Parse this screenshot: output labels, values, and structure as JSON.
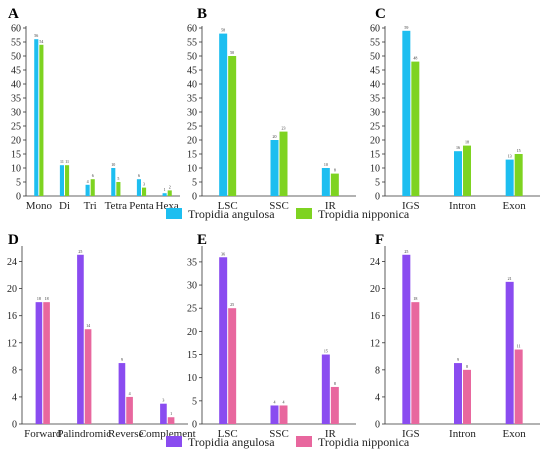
{
  "legends": [
    {
      "items": [
        {
          "label": "Tropidia angulosa",
          "color": "#1DBEF0"
        },
        {
          "label": "Tropidia nipponica",
          "color": "#7ED321"
        }
      ]
    },
    {
      "items": [
        {
          "label": "Tropidia angulosa",
          "color": "#8A4CF0"
        },
        {
          "label": "Tropidia nipponica",
          "color": "#E8679E"
        }
      ]
    }
  ],
  "chart_data": [
    {
      "panel": "A",
      "type": "bar",
      "categories": [
        "Mono",
        "Di",
        "Tri",
        "Tetra",
        "Penta",
        "Hexa"
      ],
      "series": [
        {
          "name": "Tropidia angulosa",
          "color": "#1DBEF0",
          "values": [
            56,
            11,
            4,
            10,
            6,
            1
          ]
        },
        {
          "name": "Tropidia nipponica",
          "color": "#7ED321",
          "values": [
            54,
            11,
            6,
            5,
            3,
            2
          ]
        }
      ],
      "ylim": [
        0,
        60
      ],
      "yticks": [
        0,
        5,
        10,
        15,
        20,
        25,
        30,
        35,
        40,
        45,
        50,
        55,
        60
      ],
      "value_labels": [
        [
          "56",
          "11",
          "4",
          "10",
          "6",
          "1"
        ],
        [
          "54",
          "11",
          "6",
          "5",
          "3",
          "2"
        ]
      ]
    },
    {
      "panel": "B",
      "type": "bar",
      "categories": [
        "LSC",
        "SSC",
        "IR"
      ],
      "series": [
        {
          "name": "Tropidia angulosa",
          "color": "#1DBEF0",
          "values": [
            58,
            20,
            10
          ]
        },
        {
          "name": "Tropidia nipponica",
          "color": "#7ED321",
          "values": [
            50,
            23,
            8
          ]
        }
      ],
      "ylim": [
        0,
        60
      ],
      "yticks": [
        0,
        5,
        10,
        15,
        20,
        25,
        30,
        35,
        40,
        45,
        50,
        55,
        60
      ],
      "value_labels": [
        [
          "58",
          "20",
          "10"
        ],
        [
          "50",
          "23",
          "8"
        ]
      ]
    },
    {
      "panel": "C",
      "type": "bar",
      "categories": [
        "IGS",
        "Intron",
        "Exon"
      ],
      "series": [
        {
          "name": "Tropidia angulosa",
          "color": "#1DBEF0",
          "values": [
            59,
            16,
            13
          ]
        },
        {
          "name": "Tropidia nipponica",
          "color": "#7ED321",
          "values": [
            48,
            18,
            15
          ]
        }
      ],
      "ylim": [
        0,
        60
      ],
      "yticks": [
        0,
        5,
        10,
        15,
        20,
        25,
        30,
        35,
        40,
        45,
        50,
        55,
        60
      ],
      "value_labels": [
        [
          "59",
          "16",
          "13"
        ],
        [
          "48",
          "18",
          "15"
        ]
      ]
    },
    {
      "panel": "D",
      "type": "bar",
      "categories": [
        "Forward",
        "Palindromic",
        "Reverse",
        "Complement"
      ],
      "series": [
        {
          "name": "Tropidia angulosa",
          "color": "#8A4CF0",
          "values": [
            18,
            25,
            9,
            3
          ]
        },
        {
          "name": "Tropidia nipponica",
          "color": "#E8679E",
          "values": [
            18,
            14,
            4,
            1
          ]
        }
      ],
      "ylim": [
        0,
        26
      ],
      "yticks": [
        0,
        4,
        8,
        12,
        16,
        20,
        24
      ],
      "value_labels": [
        [
          "18",
          "25",
          "9",
          "3"
        ],
        [
          "18",
          "14",
          "4",
          "1"
        ]
      ]
    },
    {
      "panel": "E",
      "type": "bar",
      "categories": [
        "LSC",
        "SSC",
        "IR"
      ],
      "series": [
        {
          "name": "Tropidia angulosa",
          "color": "#8A4CF0",
          "values": [
            36,
            4,
            15
          ]
        },
        {
          "name": "Tropidia nipponica",
          "color": "#E8679E",
          "values": [
            25,
            4,
            8
          ]
        }
      ],
      "ylim": [
        0,
        38
      ],
      "yticks": [
        0,
        5,
        10,
        15,
        20,
        25,
        30,
        35
      ],
      "value_labels": [
        [
          "36",
          "4",
          "15"
        ],
        [
          "25",
          "4",
          "8"
        ]
      ]
    },
    {
      "panel": "F",
      "type": "bar",
      "categories": [
        "IGS",
        "Intron",
        "Exon"
      ],
      "series": [
        {
          "name": "Tropidia angulosa",
          "color": "#8A4CF0",
          "values": [
            25,
            9,
            21
          ]
        },
        {
          "name": "Tropidia nipponica",
          "color": "#E8679E",
          "values": [
            18,
            8,
            11
          ]
        }
      ],
      "ylim": [
        0,
        26
      ],
      "yticks": [
        0,
        4,
        8,
        12,
        16,
        20,
        24
      ],
      "value_labels": [
        [
          "25",
          "9",
          "21"
        ],
        [
          "18",
          "8",
          "11"
        ]
      ]
    }
  ]
}
